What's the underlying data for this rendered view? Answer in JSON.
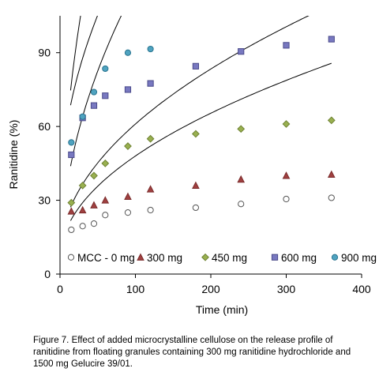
{
  "caption": "Figure 7. Effect of added microcrystalline cellulose on the release profile of ranitidine from floating granules containing 300 mg ranitidine hydrochloride and 1500 mg Gelucire 39/01.",
  "chart_data": {
    "type": "scatter",
    "xlabel": "Time (min)",
    "ylabel": "Ranitidine (%)",
    "xlim": [
      0,
      400
    ],
    "ylim": [
      0,
      105
    ],
    "xticks": [
      0,
      100,
      200,
      300,
      400
    ],
    "yticks": [
      0,
      30,
      60,
      90
    ],
    "grid": false,
    "legend_position": "bottom",
    "series": [
      {
        "name": "MCC - 0 mg",
        "marker": "circle",
        "fill": "#ffffff",
        "stroke": "#555555",
        "x": [
          15,
          30,
          45,
          60,
          90,
          120,
          180,
          240,
          300,
          360
        ],
        "y": [
          18,
          19.5,
          20.5,
          24,
          25,
          26,
          27,
          28.5,
          30.5,
          31
        ],
        "fit": {
          "a": 6.0,
          "b": 4.2
        }
      },
      {
        "name": "300 mg",
        "marker": "triangle",
        "fill": "#a04040",
        "stroke": "#7a2a2a",
        "x": [
          15,
          30,
          45,
          60,
          90,
          120,
          180,
          240,
          300,
          360
        ],
        "y": [
          25.5,
          26,
          28,
          30,
          31.5,
          34.5,
          36,
          38.5,
          40,
          40.5
        ],
        "fit": {
          "a": 7.0,
          "b": 5.4
        }
      },
      {
        "name": "450 mg",
        "marker": "diamond",
        "fill": "#99b050",
        "stroke": "#6e8232",
        "x": [
          15,
          30,
          45,
          60,
          90,
          120,
          180,
          240,
          300,
          360
        ],
        "y": [
          29,
          36,
          40,
          45,
          52,
          55,
          57,
          59,
          61,
          62.5
        ],
        "fit": {
          "a": 0.5,
          "b": 11.6
        }
      },
      {
        "name": "600 mg",
        "marker": "square",
        "fill": "#7878c0",
        "stroke": "#4a4a8a",
        "x": [
          15,
          30,
          45,
          60,
          90,
          120,
          180,
          240,
          300,
          360
        ],
        "y": [
          48.5,
          63.5,
          68.5,
          72.5,
          75,
          77.5,
          84.5,
          90.5,
          93,
          95.5
        ],
        "fit": {
          "a": 27.5,
          "b": 11.0
        }
      },
      {
        "name": "900 mg",
        "marker": "circle",
        "fill": "#4fa3c0",
        "stroke": "#2a7590",
        "x": [
          15,
          30,
          45,
          60,
          90,
          120
        ],
        "y": [
          53.5,
          64,
          74,
          83.5,
          90,
          91.5
        ],
        "fit": {
          "a": -2.0,
          "b": 20.5
        }
      }
    ]
  }
}
